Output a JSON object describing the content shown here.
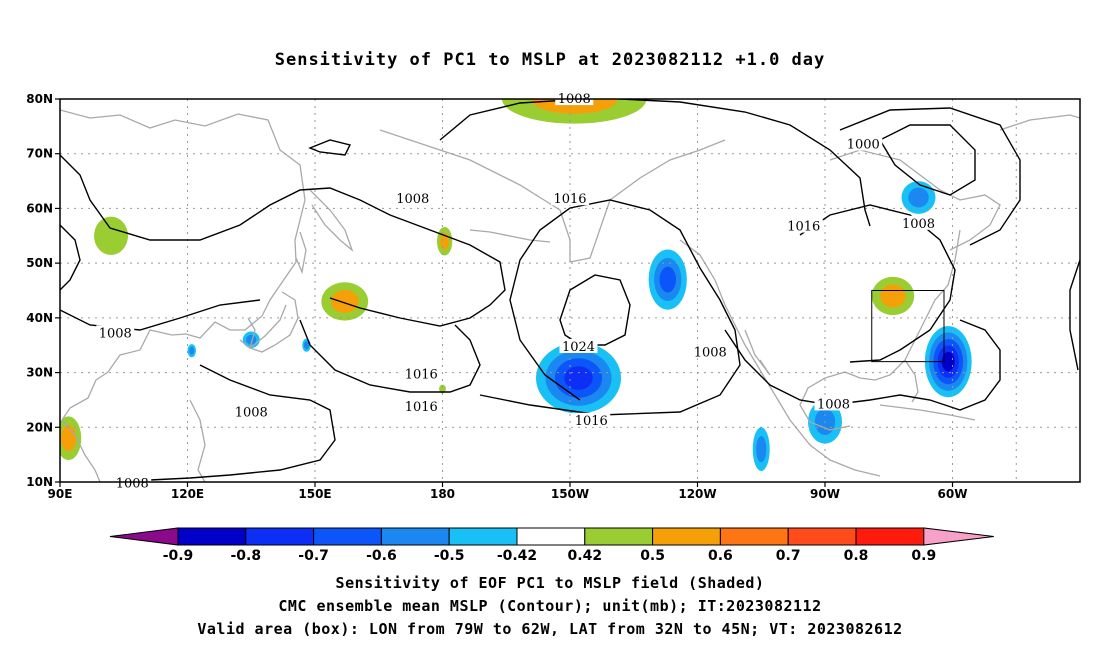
{
  "title": "Sensitivity of PC1 to MSLP at 2023082112 +1.0 day",
  "lat_labels": [
    "80N",
    "70N",
    "60N",
    "50N",
    "40N",
    "30N",
    "20N",
    "10N"
  ],
  "lon_labels": [
    "90E",
    "120E",
    "150E",
    "180",
    "150W",
    "120W",
    "90W",
    "60W"
  ],
  "contour_labels": [
    {
      "text": "1008",
      "lon": 211,
      "lat": 79.8
    },
    {
      "text": "1000",
      "lon": 279,
      "lat": 71.5
    },
    {
      "text": "1008",
      "lon": 173,
      "lat": 61.5
    },
    {
      "text": "1016",
      "lon": 210,
      "lat": 61.5
    },
    {
      "text": "1016",
      "lon": 265,
      "lat": 56.5
    },
    {
      "text": "1008",
      "lon": 292,
      "lat": 57
    },
    {
      "text": "1008",
      "lon": 103,
      "lat": 37
    },
    {
      "text": "1024",
      "lon": 212,
      "lat": 34.5
    },
    {
      "text": "1008",
      "lon": 243,
      "lat": 33.5
    },
    {
      "text": "1016",
      "lon": 175,
      "lat": 29.5
    },
    {
      "text": "1016",
      "lon": 175,
      "lat": 23.5
    },
    {
      "text": "1008",
      "lon": 135,
      "lat": 22.5
    },
    {
      "text": "1016",
      "lon": 215,
      "lat": 21
    },
    {
      "text": "1008",
      "lon": 272,
      "lat": 24
    },
    {
      "text": "1008",
      "lon": 107,
      "lat": 9.5
    }
  ],
  "shaded_regions": [
    {
      "label": "arctic-positive",
      "lon": 211,
      "lat": 80,
      "rx": 17,
      "ry": 4.5,
      "level": 0.55
    },
    {
      "label": "siberia-positive",
      "lon": 102,
      "lat": 55,
      "rx": 4,
      "ry": 3.5,
      "level": 0.45
    },
    {
      "label": "japan-east-positive",
      "lon": 157,
      "lat": 43,
      "rx": 5.5,
      "ry": 3.5,
      "level": 0.55
    },
    {
      "label": "bering-positive",
      "lon": 180.5,
      "lat": 54,
      "rx": 1.8,
      "ry": 2.6,
      "level": 0.55
    },
    {
      "label": "dateline-positive",
      "lon": 180,
      "lat": 27,
      "rx": 0.8,
      "ry": 0.8,
      "level": 0.45
    },
    {
      "label": "china-coast-positive",
      "lon": 92,
      "lat": 18,
      "rx": 3,
      "ry": 4,
      "level": 0.55
    },
    {
      "label": "great-lakes-positive",
      "lon": 286,
      "lat": 44,
      "rx": 5,
      "ry": 3.5,
      "level": 0.55
    },
    {
      "label": "hudson-negative",
      "lon": 292,
      "lat": 62,
      "rx": 4,
      "ry": 3,
      "level": -0.55
    },
    {
      "label": "gulf-alaska-negative",
      "lon": 233,
      "lat": 47,
      "rx": 4.5,
      "ry": 5.5,
      "level": -0.6
    },
    {
      "label": "subtropical-negative",
      "lon": 212,
      "lat": 29,
      "rx": 10,
      "ry": 6.5,
      "level": -0.75
    },
    {
      "label": "valid-area-negative",
      "lon": 299,
      "lat": 32,
      "rx": 5.5,
      "ry": 6.5,
      "level": -0.8
    },
    {
      "label": "gulf-mexico-negative",
      "lon": 270,
      "lat": 21,
      "rx": 4,
      "ry": 4,
      "level": -0.5
    },
    {
      "label": "central-america-negative",
      "lon": 255,
      "lat": 16,
      "rx": 2,
      "ry": 4,
      "level": -0.55
    },
    {
      "label": "japan-negative",
      "lon": 135,
      "lat": 36,
      "rx": 2,
      "ry": 1.5,
      "level": -0.55
    },
    {
      "label": "taiwan-negative",
      "lon": 121,
      "lat": 34,
      "rx": 1,
      "ry": 1.2,
      "level": -0.5
    },
    {
      "label": "kuroshio-negative",
      "lon": 148,
      "lat": 35,
      "rx": 1,
      "ry": 1.2,
      "level": -0.5
    }
  ],
  "valid_box": {
    "lon_min": 281,
    "lon_max": 298,
    "lat_min": 32,
    "lat_max": 45
  },
  "colorbar": {
    "colors": [
      "#8b0a8c",
      "#0000c8",
      "#0d2ef5",
      "#0c55f8",
      "#1a88f0",
      "#19c0f5",
      "#ffffff",
      "#9acd32",
      "#f5a009",
      "#ff7514",
      "#ff4c1a",
      "#ff1a0e",
      "#f7a0c8"
    ],
    "labels": [
      "-0.9",
      "-0.8",
      "-0.7",
      "-0.6",
      "-0.5",
      "-0.42",
      "0.42",
      "0.5",
      "0.6",
      "0.7",
      "0.8",
      "0.9"
    ]
  },
  "captions": [
    "Sensitivity of EOF PC1 to MSLP field (Shaded)",
    "CMC ensemble mean MSLP (Contour); unit(mb); IT:2023082112",
    "Valid area (box): LON from 79W to 62W, LAT from 32N to 45N; VT: 2023082612"
  ]
}
